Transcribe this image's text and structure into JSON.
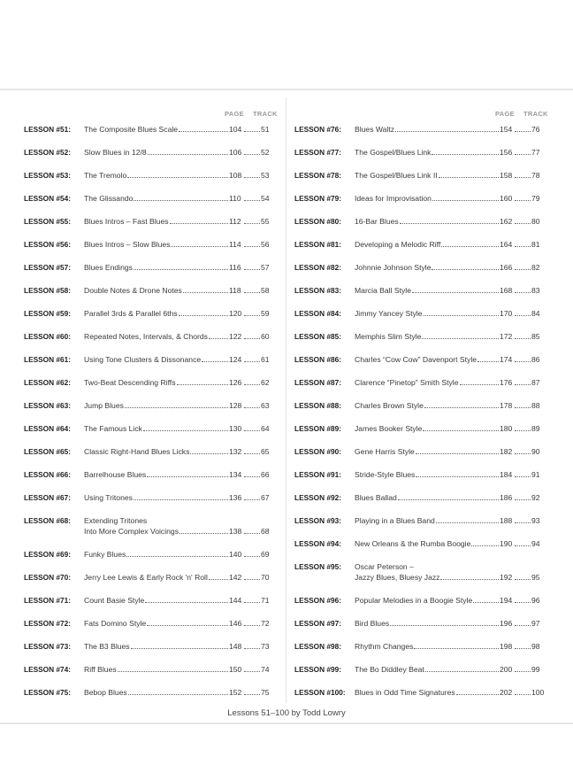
{
  "headers": {
    "page": "PAGE",
    "track": "TRACK"
  },
  "left": [
    {
      "num": "LESSON #51:",
      "title": "The Composite Blues Scale",
      "page": "104",
      "track": "51"
    },
    {
      "num": "LESSON #52:",
      "title": "Slow Blues in 12/8",
      "page": "106",
      "track": "52"
    },
    {
      "num": "LESSON #53:",
      "title": "The Tremolo",
      "page": "108",
      "track": "53"
    },
    {
      "num": "LESSON #54:",
      "title": "The Glissando",
      "page": "110",
      "track": "54"
    },
    {
      "num": "LESSON #55:",
      "title": "Blues Intros – Fast Blues",
      "page": "112",
      "track": "55"
    },
    {
      "num": "LESSON #56:",
      "title": "Blues Intros – Slow Blues",
      "page": "114",
      "track": "56"
    },
    {
      "num": "LESSON #57:",
      "title": "Blues Endings",
      "page": "116",
      "track": "57"
    },
    {
      "num": "LESSON #58:",
      "title": "Double Notes & Drone Notes",
      "page": "118",
      "track": "58"
    },
    {
      "num": "LESSON #59:",
      "title": "Parallel 3rds & Parallel 6ths",
      "page": "120",
      "track": "59"
    },
    {
      "num": "LESSON #60:",
      "title": "Repeated Notes, Intervals, & Chords",
      "page": "122",
      "track": "60"
    },
    {
      "num": "LESSON #61:",
      "title": "Using Tone Clusters & Dissonance",
      "page": "124",
      "track": "61"
    },
    {
      "num": "LESSON #62:",
      "title": "Two-Beat Descending Riffs",
      "page": "126",
      "track": "62"
    },
    {
      "num": "LESSON #63:",
      "title": "Jump Blues",
      "page": "128",
      "track": "63"
    },
    {
      "num": "LESSON #64:",
      "title": "The Famous Lick",
      "page": "130",
      "track": "64"
    },
    {
      "num": "LESSON #65:",
      "title": "Classic Right-Hand Blues Licks",
      "page": "132",
      "track": "65"
    },
    {
      "num": "LESSON #66:",
      "title": "Barrelhouse Blues",
      "page": "134",
      "track": "66"
    },
    {
      "num": "LESSON #67:",
      "title": "Using Tritones",
      "page": "136",
      "track": "67"
    },
    {
      "num": "LESSON #68:",
      "title": "Extending Tritones",
      "title2": "Into More Complex Voicings",
      "page": "138",
      "track": "68"
    },
    {
      "num": "LESSON #69:",
      "title": "Funky Blues",
      "page": "140",
      "track": "69"
    },
    {
      "num": "LESSON #70:",
      "title": "Jerry Lee Lewis & Early Rock 'n' Roll",
      "page": "142",
      "track": "70"
    },
    {
      "num": "LESSON #71:",
      "title": "Count Basie Style",
      "page": "144",
      "track": "71"
    },
    {
      "num": "LESSON #72:",
      "title": "Fats Domino Style",
      "page": "146",
      "track": "72"
    },
    {
      "num": "LESSON #73:",
      "title": "The B3 Blues",
      "page": "148",
      "track": "73"
    },
    {
      "num": "LESSON #74:",
      "title": "Riff Blues",
      "page": "150",
      "track": "74"
    },
    {
      "num": "LESSON #75:",
      "title": "Bebop Blues",
      "page": "152",
      "track": "75"
    }
  ],
  "right": [
    {
      "num": "LESSON #76:",
      "title": "Blues Waltz",
      "page": "154",
      "track": "76"
    },
    {
      "num": "LESSON #77:",
      "title": "The Gospel/Blues Link",
      "page": "156",
      "track": "77"
    },
    {
      "num": "LESSON #78:",
      "title": "The Gospel/Blues Link II",
      "page": "158",
      "track": "78"
    },
    {
      "num": "LESSON #79:",
      "title": "Ideas for Improvisation",
      "page": "160",
      "track": "79"
    },
    {
      "num": "LESSON #80:",
      "title": "16-Bar Blues",
      "page": "162",
      "track": "80"
    },
    {
      "num": "LESSON #81:",
      "title": "Developing a Melodic Riff",
      "page": "164",
      "track": "81"
    },
    {
      "num": "LESSON #82:",
      "title": "Johnnie Johnson Style",
      "page": "166",
      "track": "82"
    },
    {
      "num": "LESSON #83:",
      "title": "Marcia Ball Style",
      "page": "168",
      "track": "83"
    },
    {
      "num": "LESSON #84:",
      "title": "Jimmy Yancey Style",
      "page": "170",
      "track": "84"
    },
    {
      "num": "LESSON #85:",
      "title": "Memphis Slim Style",
      "page": "172",
      "track": "85"
    },
    {
      "num": "LESSON #86:",
      "title": "Charles “Cow Cow” Davenport Style",
      "page": "174",
      "track": "86"
    },
    {
      "num": "LESSON #87:",
      "title": "Clarence “Pinetop” Smith Style",
      "page": "176",
      "track": "87"
    },
    {
      "num": "LESSON #88:",
      "title": "Charles Brown Style",
      "page": "178",
      "track": "88"
    },
    {
      "num": "LESSON #89:",
      "title": "James Booker Style",
      "page": "180",
      "track": "89"
    },
    {
      "num": "LESSON #90:",
      "title": "Gene Harris Style",
      "page": "182",
      "track": "90"
    },
    {
      "num": "LESSON #91:",
      "title": "Stride-Style Blues",
      "page": "184",
      "track": "91"
    },
    {
      "num": "LESSON #92:",
      "title": "Blues Ballad",
      "page": "186",
      "track": "92"
    },
    {
      "num": "LESSON #93:",
      "title": "Playing in a Blues Band",
      "page": "188",
      "track": "93"
    },
    {
      "num": "LESSON #94:",
      "title": "New Orleans & the Rumba Boogie",
      "page": "190",
      "track": "94"
    },
    {
      "num": "LESSON #95:",
      "title": "Oscar Peterson –",
      "title2": "Jazzy Blues, Bluesy Jazz",
      "page": "192",
      "track": "95"
    },
    {
      "num": "LESSON #96:",
      "title": "Popular Melodies in a Boogie Style",
      "page": "194",
      "track": "96"
    },
    {
      "num": "LESSON #97:",
      "title": "Bird Blues",
      "page": "196",
      "track": "97"
    },
    {
      "num": "LESSON #98:",
      "title": "Rhythm Changes",
      "page": "198",
      "track": "98"
    },
    {
      "num": "LESSON #99:",
      "title": "The Bo Diddley Beat",
      "page": "200",
      "track": "99"
    },
    {
      "num": "LESSON #100:",
      "title": "Blues in Odd Time Signatures",
      "page": "202",
      "track": "100"
    }
  ],
  "footer": "Lessons 51–100 by Todd Lowry"
}
